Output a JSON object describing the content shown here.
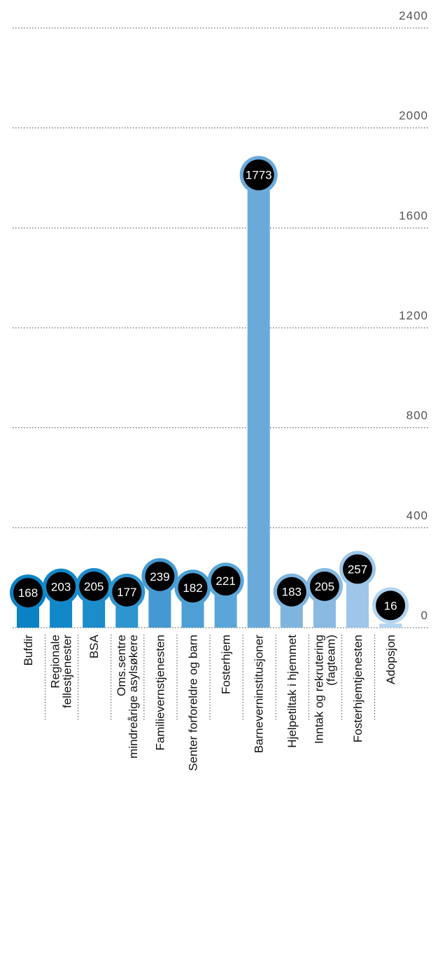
{
  "chart_data": {
    "type": "bar",
    "title": "",
    "xlabel": "",
    "ylabel": "",
    "ylim": [
      0,
      2400
    ],
    "y_ticks": [
      "0",
      "400",
      "800",
      "1200",
      "1600",
      "2000",
      "2400"
    ],
    "y_tick_values": [
      0,
      400,
      800,
      1200,
      1600,
      2000,
      2400
    ],
    "grid": true,
    "categories": [
      [
        "Bufdir"
      ],
      [
        "Regionale",
        "fellestjenester"
      ],
      [
        "BSA"
      ],
      [
        "Oms.sentre",
        "mindreårige asylsøkere"
      ],
      [
        "Familievernstjenesten"
      ],
      [
        "Senter forforeldre og barn"
      ],
      [
        "Fosterhjem"
      ],
      [
        "Barneverninstitusjoner"
      ],
      [
        "Hjelpetiltak i hjemmet"
      ],
      [
        "Inntak og rekrutering",
        "(fagteam)"
      ],
      [
        "Fosterhjemtjenesten"
      ],
      [
        "Adopsjon"
      ]
    ],
    "values": [
      168,
      203,
      205,
      177,
      239,
      182,
      221,
      1773,
      183,
      205,
      257,
      16
    ],
    "value_labels": [
      "168",
      "203",
      "205",
      "177",
      "239",
      "182",
      "221",
      "1773",
      "183",
      "205",
      "257",
      "16"
    ],
    "colors": [
      "#0a82c4",
      "#1288c8",
      "#1d8ccb",
      "#2f95cf",
      "#4599d2",
      "#4d9fd5",
      "#5aa6d8",
      "#6aaadb",
      "#7fb4de",
      "#88bae2",
      "#9dc6e8",
      "#b4d4ee"
    ]
  }
}
